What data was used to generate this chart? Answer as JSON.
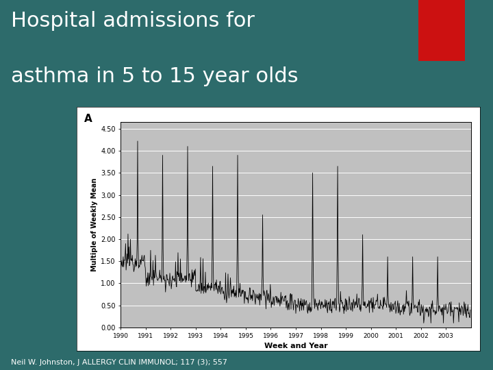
{
  "title_line1": "Hospital admissions for",
  "title_line2": "asthma in 5 to 15 year olds",
  "title_fontsize": 22,
  "title_color": "#ffffff",
  "background_color": "#2d6b6b",
  "chart_outer_bg": "#ffffff",
  "chart_plot_bg": "#c0c0c0",
  "ylabel": "Multiple of Weekly Mean",
  "xlabel": "Week and Year",
  "ylabel_fontsize": 7,
  "xlabel_fontsize": 8,
  "yticks": [
    0.0,
    0.5,
    1.0,
    1.5,
    2.0,
    2.5,
    3.0,
    3.5,
    4.0,
    4.5
  ],
  "ylim": [
    0.0,
    4.65
  ],
  "panel_label": "A",
  "footer_text": "Neil W. Johnston, J ALLERGY CLIN IMMUNOL; 117 (3); 557",
  "footer_color": "#ffffff",
  "footer_fontsize": 8,
  "red_rect_color": "#cc1111",
  "line_color": "#000000",
  "line_width": 0.6,
  "spike_amplitudes": [
    4.22,
    3.9,
    4.1,
    3.65,
    3.9,
    2.55,
    0.5,
    3.5,
    3.65,
    2.1,
    1.6,
    1.6,
    1.6
  ],
  "base_levels": [
    1.5,
    1.1,
    1.1,
    0.9,
    0.8,
    0.7,
    0.6,
    0.5,
    0.5,
    0.5,
    0.5,
    0.45,
    0.4
  ]
}
